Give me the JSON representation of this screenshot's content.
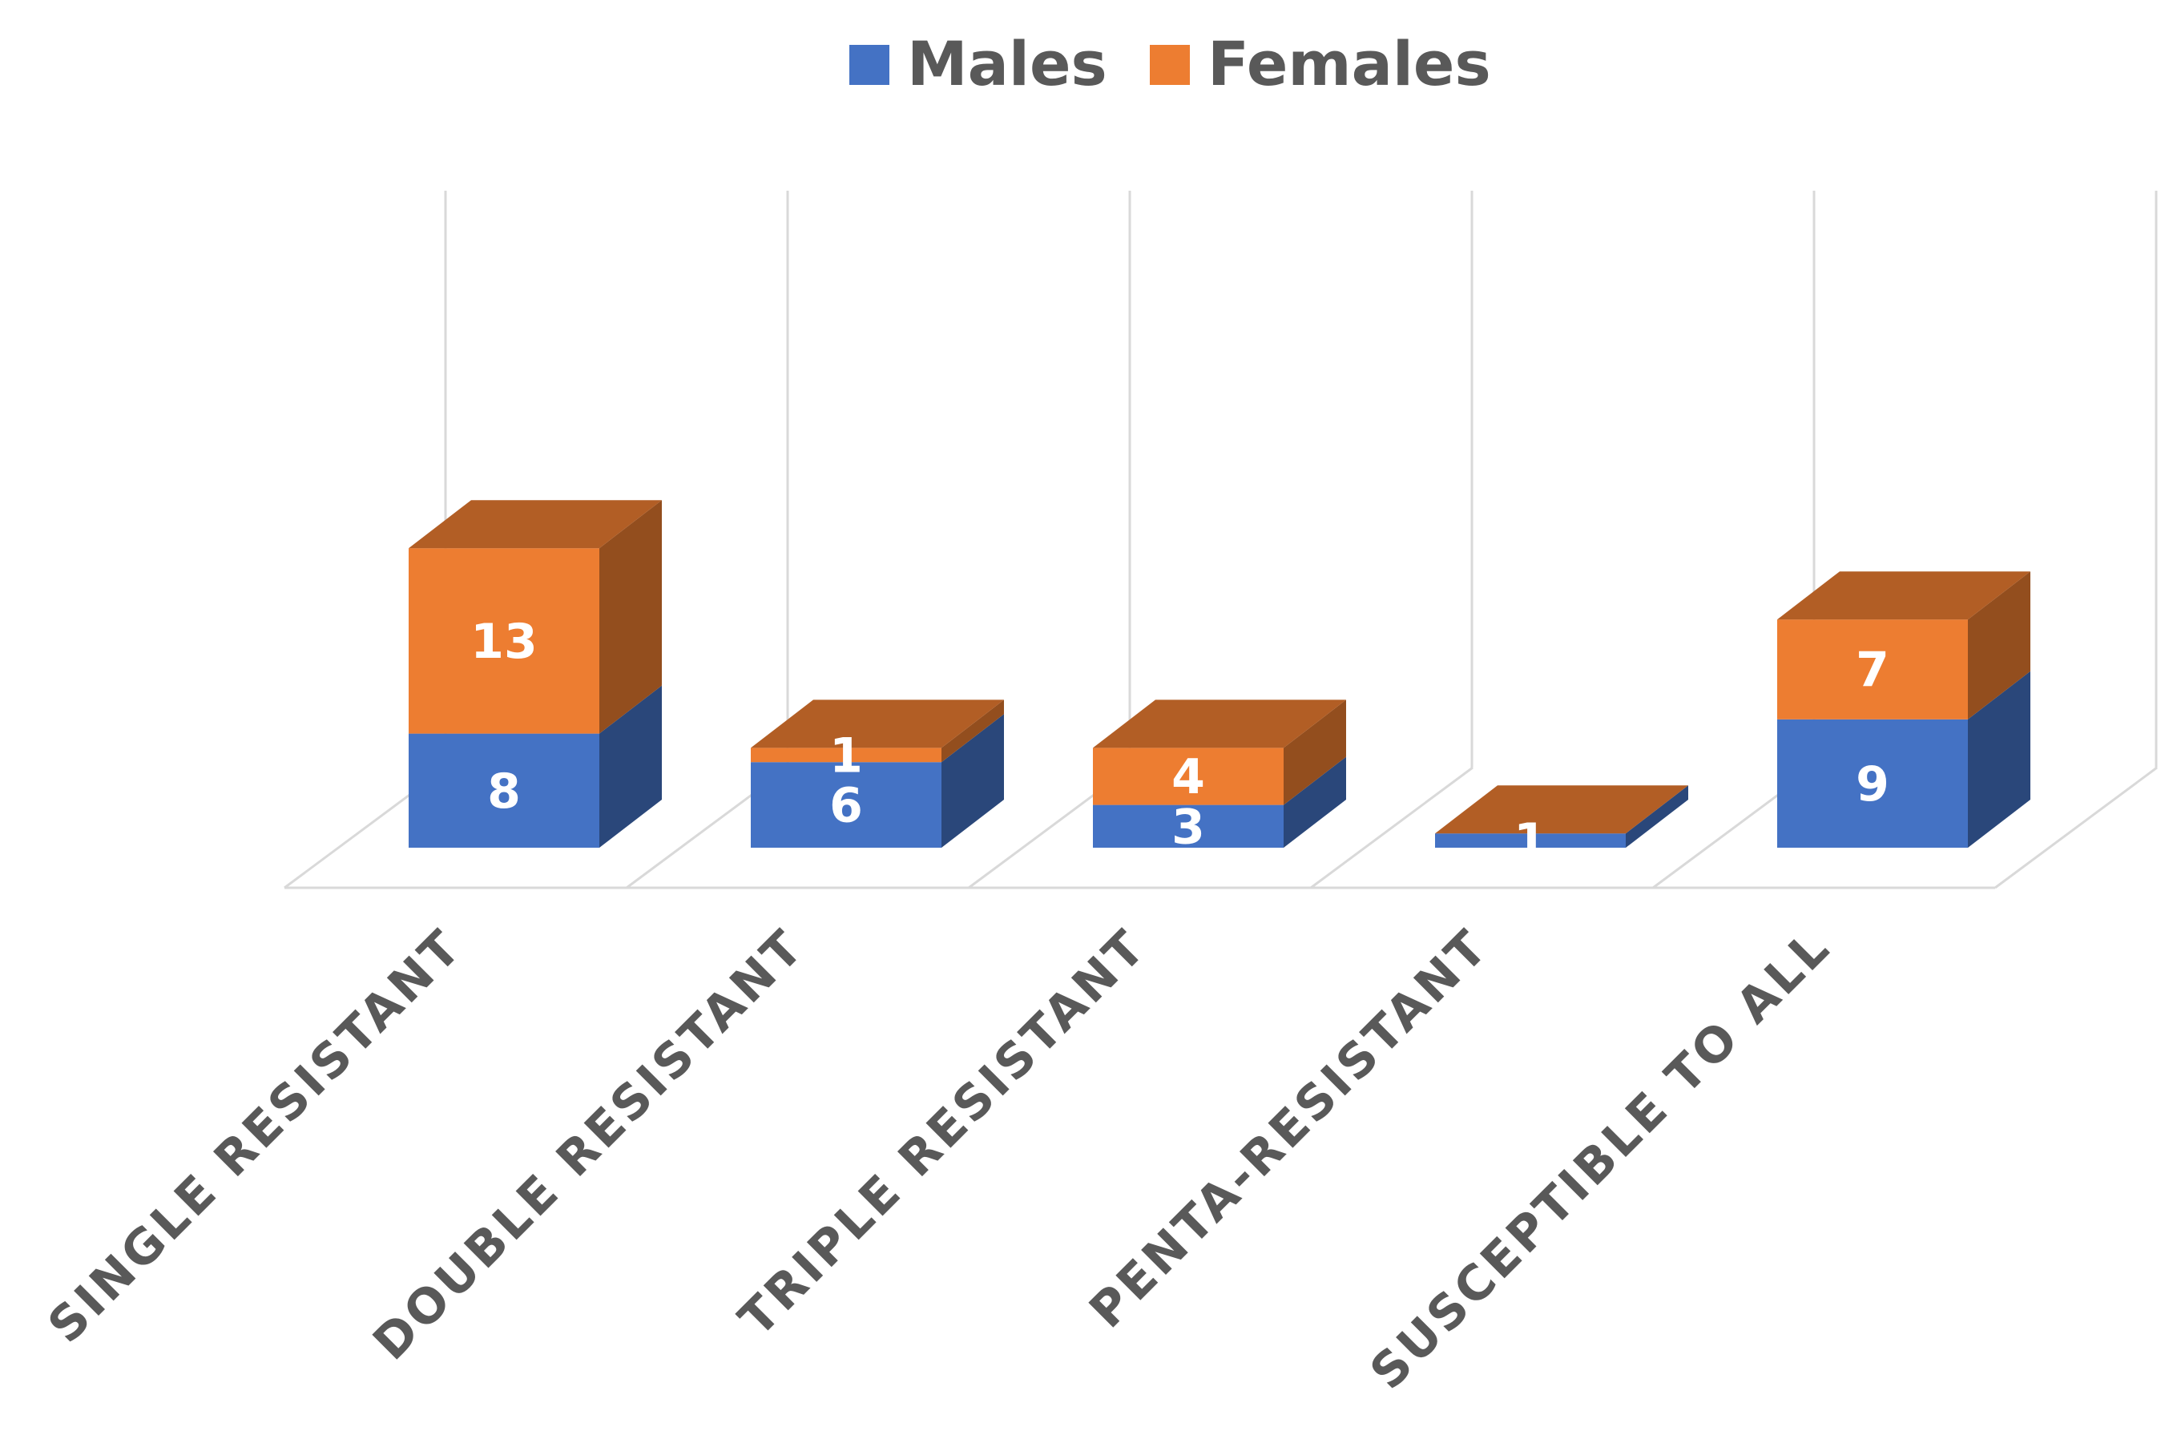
{
  "chart_data": {
    "type": "bar",
    "stacked": true,
    "three_d": true,
    "categories": [
      "SINGLE RESISTANT",
      "DOUBLE RESISTANT",
      "TRIPLE RESISTANT",
      "PENTA-RESISTANT",
      "SUSCEPTIBLE TO ALL"
    ],
    "series": [
      {
        "name": "Males",
        "values": [
          8,
          6,
          3,
          1,
          9
        ],
        "color": "#4472C4"
      },
      {
        "name": "Females",
        "values": [
          13,
          1,
          4,
          0,
          7
        ],
        "color": "#ED7D31"
      }
    ],
    "data_labels": [
      {
        "series": "Males",
        "values": [
          "8",
          "6",
          "3",
          "1",
          "9"
        ]
      },
      {
        "series": "Females",
        "values": [
          "13",
          "1",
          "4",
          "",
          "7"
        ]
      }
    ],
    "legend_position": "top",
    "ylim": [
      0,
      25
    ],
    "grid": true,
    "title": "",
    "xlabel": "",
    "ylabel": ""
  }
}
